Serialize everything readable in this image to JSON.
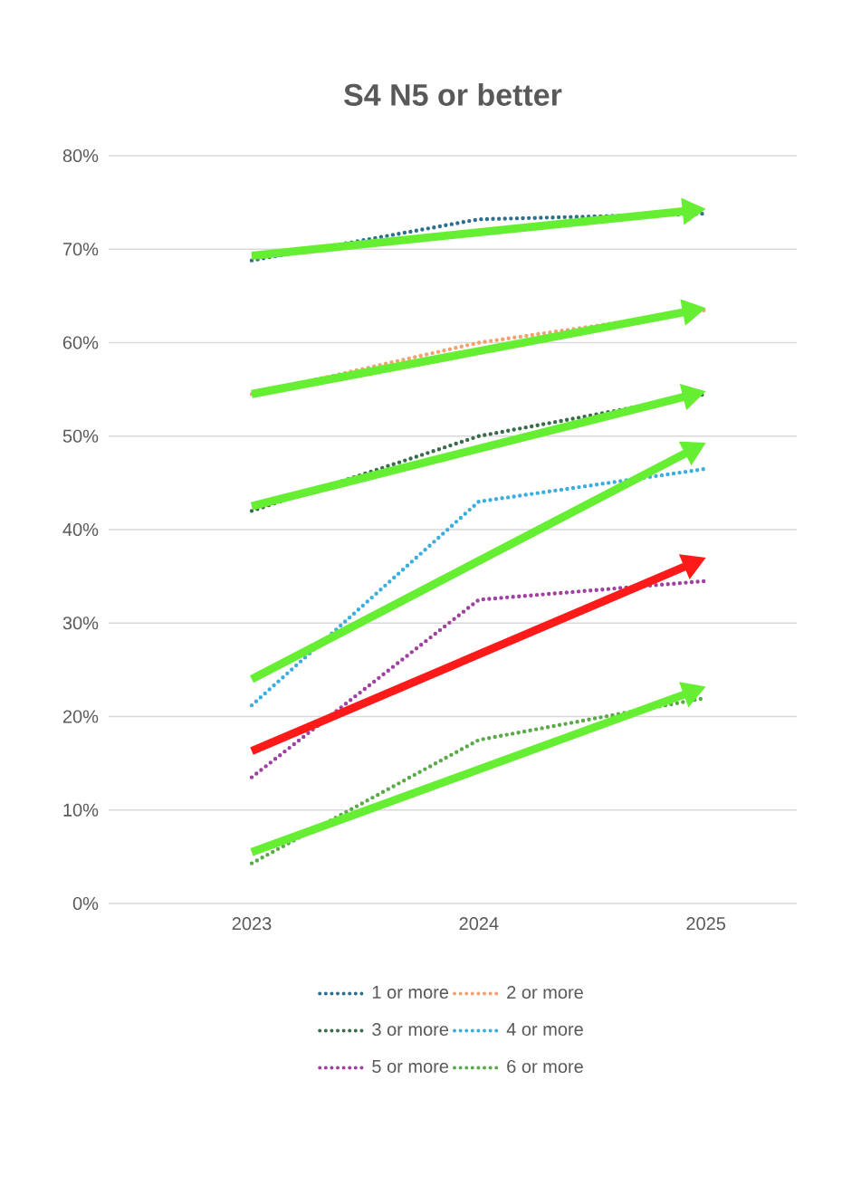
{
  "chart_data": {
    "type": "line",
    "title": "S4 N5 or better",
    "categories": [
      "2023",
      "2024",
      "2025"
    ],
    "ylim": [
      0,
      80
    ],
    "yticks": [
      {
        "value": 0,
        "label": "0%"
      },
      {
        "value": 10,
        "label": "10%"
      },
      {
        "value": 20,
        "label": "20%"
      },
      {
        "value": 30,
        "label": "30%"
      },
      {
        "value": 40,
        "label": "40%"
      },
      {
        "value": 50,
        "label": "50%"
      },
      {
        "value": 60,
        "label": "60%"
      },
      {
        "value": 70,
        "label": "70%"
      },
      {
        "value": 80,
        "label": "80%"
      }
    ],
    "grid": "y",
    "legend": "bottom",
    "marker": "none",
    "series": [
      {
        "name": "1 or more",
        "color": "#2e6f8e",
        "line_style": "dotted",
        "values": [
          68.8,
          73.2,
          73.8
        ]
      },
      {
        "name": "2 or more",
        "color": "#f4a06f",
        "line_style": "dotted",
        "values": [
          54.5,
          60,
          63.5
        ]
      },
      {
        "name": "3 or more",
        "color": "#3a6b4a",
        "line_style": "dotted",
        "values": [
          42,
          50,
          54.5
        ]
      },
      {
        "name": "4 or more",
        "color": "#3aaee0",
        "line_style": "dotted",
        "values": [
          21.2,
          43,
          46.5
        ]
      },
      {
        "name": "5 or more",
        "color": "#a040a0",
        "line_style": "dotted",
        "values": [
          13.5,
          32.5,
          34.5
        ]
      },
      {
        "name": "6 or more",
        "color": "#5aaa4a",
        "line_style": "dotted",
        "values": [
          4.3,
          17.5,
          22
        ]
      }
    ]
  }
}
